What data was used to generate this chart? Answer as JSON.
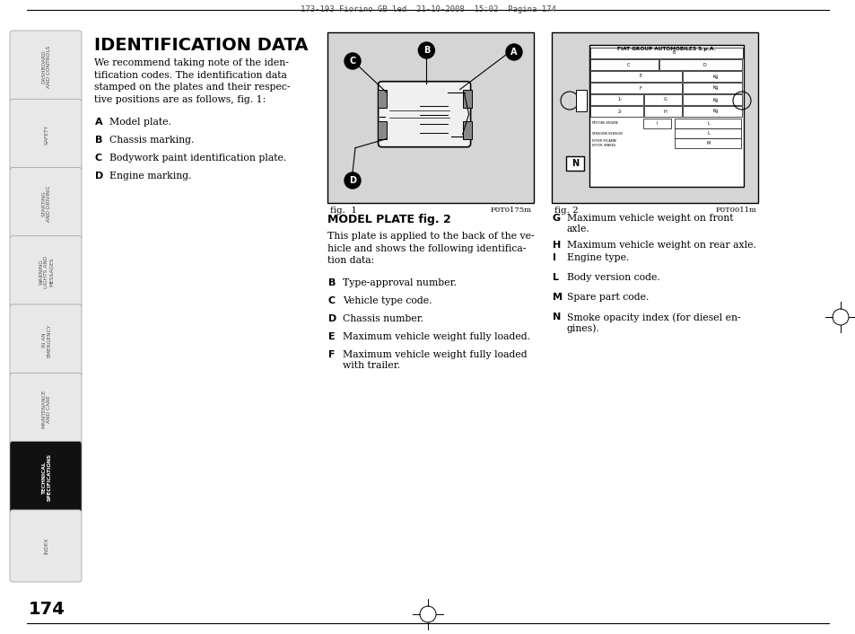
{
  "bg_color": "#ffffff",
  "sidebar_color": "#e8e8e8",
  "sidebar_active_color": "#111111",
  "sidebar_active_text": "#ffffff",
  "sidebar_inactive_text": "#555555",
  "header_text": "173-193 Fiorino GB led  21-10-2008  15:02  Pagina 174",
  "title": "IDENTIFICATION DATA",
  "intro_text": "We recommend taking note of the iden-\ntification codes. The identification data\nstamped on the plates and their respec-\ntive positions are as follows, fig. 1:",
  "list_left": [
    [
      "A",
      "Model plate."
    ],
    [
      "B",
      "Chassis marking."
    ],
    [
      "C",
      "Bodywork paint identification plate."
    ],
    [
      "D",
      "Engine marking."
    ]
  ],
  "model_plate_title": "MODEL PLATE fig. 2",
  "model_plate_intro": "This plate is applied to the back of the ve-\nhicle and shows the following identifica-\ntion data:",
  "list_mid": [
    [
      "B",
      "Type-approval number."
    ],
    [
      "C",
      "Vehicle type code."
    ],
    [
      "D",
      "Chassis number."
    ],
    [
      "E",
      "Maximum vehicle weight fully loaded."
    ],
    [
      "F",
      "Maximum vehicle weight fully loaded\nwith trailer."
    ]
  ],
  "list_right": [
    [
      "G",
      "Maximum vehicle weight on front\naxle."
    ],
    [
      "H",
      "Maximum vehicle weight on rear axle."
    ],
    [
      "I",
      "Engine type."
    ],
    [
      "L",
      "Body version code."
    ],
    [
      "M",
      "Spare part code."
    ],
    [
      "N",
      "Smoke opacity index (for diesel en-\ngines)."
    ]
  ],
  "sidebar_labels": [
    "DASHBOARD\nAND CONTROLS",
    "SAFETY",
    "STARTING\nAND DRIVING",
    "WARNING\nLIGHTS AND\nMESSAGES",
    "IN AN\nEMERGENCY",
    "MAINTENANCE\nAND CARE",
    "TECHNICAL\nSPECIFICATIONS",
    "INDEX"
  ],
  "active_tab": 6,
  "page_number": "174",
  "fig1_caption": "fig.  1",
  "fig1_code": "F0T0175m",
  "fig2_caption": "fig. 2",
  "fig2_code": "F0T0011m"
}
